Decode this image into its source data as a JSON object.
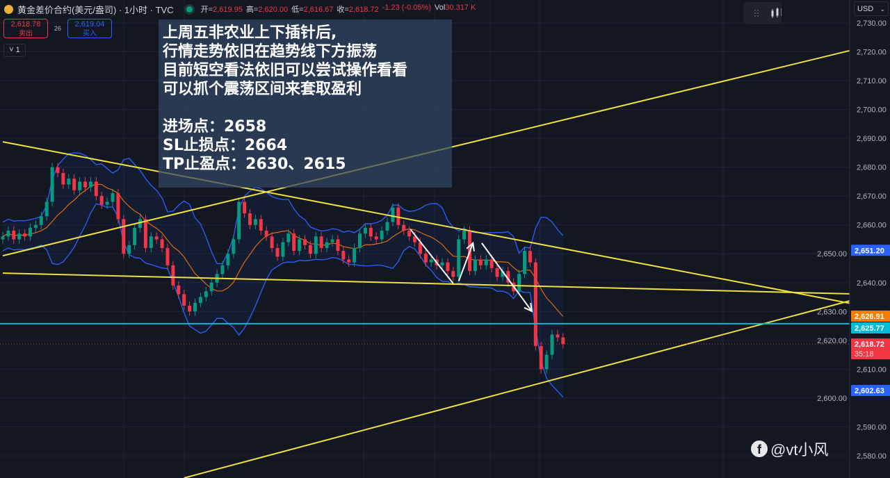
{
  "header": {
    "title": "黄金差价合约(美元/盎司) · 1小时 · TVC",
    "open_label": "开=",
    "open": "2,619.95",
    "high_label": "高=",
    "high": "2,620.00",
    "low_label": "低=",
    "low": "2,616.67",
    "close_label": "收=",
    "close": "2,618.72",
    "change": "-1.23 (-0.05%)",
    "vol_label": "Vol",
    "vol": "30.317 K"
  },
  "trade": {
    "sell_price": "2,618.78",
    "sell_label": "卖出",
    "spread": "26",
    "buy_price": "2,619.04",
    "buy_label": "买入",
    "indicator_chip": "˅ 1"
  },
  "currency": "USD",
  "note": {
    "lines": [
      "上周五非农业上下插针后,",
      "行情走势依旧在趋势线下方振荡",
      "目前短空看法依旧可以尝试操作看看",
      "可以抓个震荡区间来套取盈利",
      "",
      "进场点：2658",
      "SL止损点：2664",
      "TP止盈点：2630、2615"
    ]
  },
  "watermark": "@vt小风",
  "colors": {
    "bg": "#131722",
    "up": "#089981",
    "down": "#f23645",
    "band": "#2962ff",
    "ma": "#e06c0c",
    "trend": "#f0e040",
    "level": "#00bcd4"
  },
  "chart_data": {
    "type": "candlestick",
    "symbol": "黄金差价合约(美元/盎司)",
    "interval": "1小时",
    "yticks": [
      "2,580.00",
      "2,590.00",
      "2,600.00",
      "2,610.00",
      "2,620.00",
      "2,630.00",
      "2,640.00",
      "2,650.00",
      "2,660.00",
      "2,670.00",
      "2,680.00",
      "2,690.00",
      "2,700.00",
      "2,710.00",
      "2,720.00",
      "2,730.00"
    ],
    "ylim": [
      2576,
      2735
    ],
    "close": [
      2656,
      2658,
      2655,
      2657,
      2656,
      2659,
      2660,
      2663,
      2668,
      2680,
      2678,
      2674,
      2676,
      2672,
      2675,
      2673,
      2675,
      2670,
      2667,
      2668,
      2671,
      2662,
      2650,
      2653,
      2659,
      2662,
      2652,
      2656,
      2655,
      2652,
      2646,
      2639,
      2636,
      2632,
      2630,
      2633,
      2635,
      2637,
      2640,
      2643,
      2646,
      2650,
      2655,
      2668,
      2664,
      2660,
      2662,
      2658,
      2656,
      2652,
      2649,
      2654,
      2657,
      2651,
      2655,
      2653,
      2650,
      2656,
      2652,
      2654,
      2655,
      2651,
      2648,
      2647,
      2652,
      2657,
      2659,
      2656,
      2655,
      2658,
      2661,
      2666,
      2660,
      2658,
      2656,
      2654,
      2650,
      2647,
      2648,
      2646,
      2647,
      2644,
      2642,
      2655,
      2658,
      2644,
      2648,
      2646,
      2648,
      2645,
      2642,
      2644,
      2640,
      2637,
      2643,
      2651,
      2647,
      2618,
      2610,
      2615,
      2622,
      2621,
      2618.72
    ],
    "trendlines": [
      {
        "from": [
          0,
          2649.3
        ],
        "to": [
          154.6,
          2720.6
        ]
      },
      {
        "from": [
          0,
          2688.8
        ],
        "to": [
          154.6,
          2632.7
        ]
      },
      {
        "from": [
          0,
          2643.3
        ],
        "to": [
          154.6,
          2636.1
        ]
      },
      {
        "from": [
          33,
          2572.3
        ],
        "to": [
          154.6,
          2633.9
        ]
      }
    ],
    "arrows": [
      {
        "from": [
          74.2,
          2658.5
        ],
        "to": [
          82,
          2639.7
        ],
        "head": false
      },
      {
        "from": [
          83,
          2640.5
        ],
        "to": [
          85.6,
          2653.7
        ],
        "head": true
      },
      {
        "from": [
          87.2,
          2653.7
        ],
        "to": [
          96.3,
          2630.1
        ],
        "head": true
      }
    ],
    "horizontal_level": 2625.77,
    "price_labels": [
      {
        "value": "2,651.20",
        "color": "#2962ff",
        "price": 2651.2
      },
      {
        "value": "2,626.91",
        "color": "#f57c00",
        "price": 2626.91
      },
      {
        "value": "2,625.77",
        "color": "#00bcd4",
        "price": 2625.77
      },
      {
        "value": "2,618.72",
        "sub": "35:18",
        "color": "#f23645",
        "price": 2618.72
      },
      {
        "value": "2,602.63",
        "color": "#2962ff",
        "price": 2602.63
      }
    ]
  }
}
